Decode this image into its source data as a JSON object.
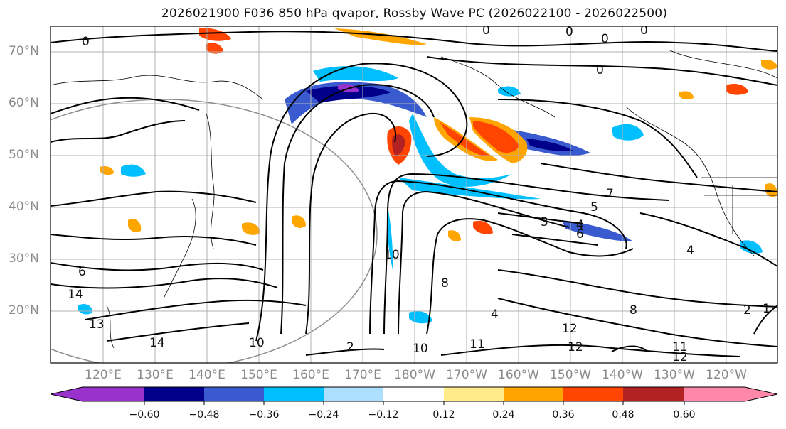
{
  "title": "2026021900 F036 850 hPa qvapor, Rossby Wave PC (2026022100 - 2026022500)",
  "lat_labels": [
    "70°N",
    "60°N",
    "50°N",
    "40°N",
    "30°N",
    "20°N"
  ],
  "lon_labels": [
    "120°E",
    "130°E",
    "140°E",
    "150°E",
    "160°E",
    "170°E",
    "180°W",
    "170°W",
    "160°W",
    "150°W",
    "140°W",
    "130°W",
    "120°W"
  ],
  "colorbar": {
    "colors": [
      "#9932CC",
      "#00008B",
      "#3A5BD0",
      "#00BFFF",
      "#ADDFFF",
      "#FFFFFF",
      "#FFEB8A",
      "#FFA500",
      "#FF4500",
      "#B22222",
      "#FF88AA"
    ],
    "ticks": [
      "−0.60",
      "−0.48",
      "−0.36",
      "−0.24",
      "−0.12",
      "0.12",
      "0.24",
      "0.36",
      "0.48",
      "0.60"
    ]
  },
  "contour_labels": [
    "0",
    "0",
    "0",
    "0",
    "0",
    "0",
    "1",
    "2",
    "2",
    "3",
    "4",
    "4",
    "4",
    "5",
    "6",
    "6",
    "7",
    "8",
    "8",
    "10",
    "10",
    "10",
    "11",
    "11",
    "12",
    "12",
    "12",
    "13",
    "14",
    "14"
  ]
}
